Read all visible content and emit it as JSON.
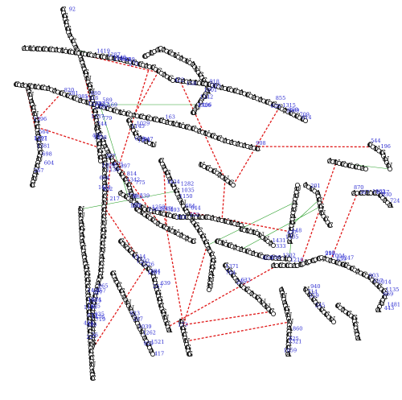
{
  "colors": {
    "backbone": "#000000",
    "pair_link": "#2aa02a",
    "pseudoknot": "#e01818",
    "index_label": "#2a2ad0",
    "nucleotide_fill": "#ffffff",
    "nucleotide_outline": "#000000"
  },
  "index_labels": [
    "92",
    "76",
    "201",
    "217",
    "148",
    "158",
    "173",
    "169",
    "183",
    "1458",
    "189",
    "196",
    "227",
    "245",
    "163",
    "265",
    "267",
    "257",
    "271",
    "252",
    "247",
    "448",
    "443",
    "432",
    "427",
    "422",
    "417",
    "407",
    "493",
    "485",
    "539",
    "544",
    "549",
    "559",
    "614",
    "633",
    "604",
    "639",
    "643",
    "644",
    "1471",
    "1476",
    "1481",
    "1451",
    "1405",
    "1406",
    "929",
    "589",
    "749",
    "744",
    "739",
    "724",
    "719",
    "714",
    "709",
    "704",
    "698",
    "694",
    "689",
    "684",
    "679",
    "673",
    "669",
    "664",
    "659",
    "1526",
    "1521",
    "1516",
    "1511",
    "779",
    "775",
    "930",
    "935",
    "940",
    "950",
    "1371",
    "1381",
    "1391",
    "1165",
    "1150",
    "1145",
    "1140",
    "1135",
    "1130",
    "1247",
    "1242",
    "1262",
    "1257",
    "1252",
    "1337",
    "1342",
    "1347",
    "1055",
    "1059",
    "1069",
    "1216",
    "1221",
    "1226",
    "1040",
    "1035",
    "1029",
    "1024",
    "1014",
    "1009",
    "1004",
    "1001",
    "1039",
    "985",
    "1363",
    "1356",
    "814",
    "1065",
    "1075",
    "1321",
    "1315",
    "1302",
    "1297",
    "1292",
    "1287",
    "1282",
    "333",
    "327",
    "317",
    "307",
    "299",
    "293",
    "287",
    "281",
    "272",
    "387",
    "397",
    "367",
    "357",
    "625",
    "620",
    "299",
    "564",
    "1414",
    "1419",
    "1424",
    "1431",
    "1436",
    "903",
    "908",
    "913",
    "918",
    "923",
    "820",
    "885",
    "880",
    "875",
    "870",
    "865",
    "860",
    "855",
    "850",
    "1396"
  ],
  "nucleotide_letters": [
    "G",
    "C",
    "A",
    "U"
  ]
}
